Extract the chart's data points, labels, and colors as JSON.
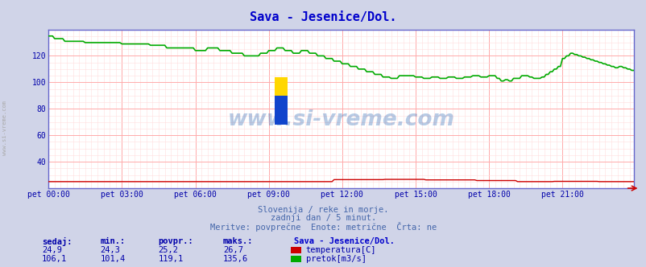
{
  "title": "Sava - Jesenice/Dol.",
  "title_color": "#0000cc",
  "bg_color": "#d0d4e8",
  "plot_bg_color": "#ffffff",
  "grid_color_major": "#ffaaaa",
  "grid_color_minor": "#ffdddd",
  "tick_color": "#0000aa",
  "watermark": "www.si-vreme.com",
  "watermark_color": "#1155aa",
  "watermark_alpha": 0.3,
  "subtitle_lines": [
    "Slovenija / reke in morje.",
    "zadnji dan / 5 minut.",
    "Meritve: povprečne  Enote: metrične  Črta: ne"
  ],
  "subtitle_color": "#4466aa",
  "xlim": [
    0,
    287
  ],
  "ylim": [
    20,
    140
  ],
  "yticks": [
    40,
    60,
    80,
    100,
    120
  ],
  "xtick_labels": [
    "pet 00:00",
    "pet 03:00",
    "pet 06:00",
    "pet 09:00",
    "pet 12:00",
    "pet 15:00",
    "pet 18:00",
    "pet 21:00"
  ],
  "xtick_positions": [
    0,
    36,
    72,
    108,
    144,
    180,
    216,
    252
  ],
  "legend_title": "Sava - Jesenice/Dol.",
  "legend_title_color": "#0000cc",
  "legend_items": [
    {
      "label": "temperatura[C]",
      "color": "#cc0000"
    },
    {
      "label": "pretok[m3/s]",
      "color": "#00aa00"
    }
  ],
  "table_headers": [
    "sedaj:",
    "min.:",
    "povpr.:",
    "maks.:"
  ],
  "table_rows": [
    [
      "24,9",
      "24,3",
      "25,2",
      "26,7"
    ],
    [
      "106,1",
      "101,4",
      "119,1",
      "135,6"
    ]
  ],
  "table_color": "#0000aa",
  "logo_colors": [
    "#FFD700",
    "#1144cc"
  ],
  "axis_color": "#6666cc",
  "arrow_color": "#cc0000"
}
